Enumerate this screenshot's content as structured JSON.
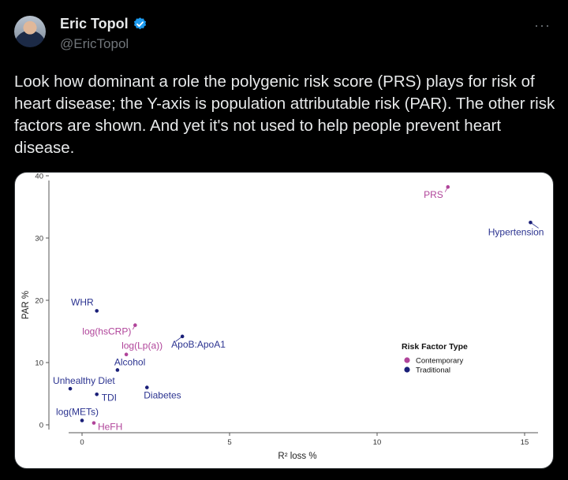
{
  "tweet": {
    "author": {
      "name": "Eric Topol",
      "handle": "@EricTopol",
      "verified": true
    },
    "more_label": "···",
    "text": "Look how dominant a role the polygenic risk score (PRS) plays for risk of heart disease; the Y-axis is population attributable risk (PAR). The other risk factors are shown. And yet it's not used to help people prevent heart disease."
  },
  "colors": {
    "contemporary": "#b0449a",
    "traditional": "#1a1f78",
    "label_traditional": "#2b3390"
  },
  "chart_data": {
    "type": "scatter",
    "xlabel": "R² loss %",
    "ylabel": "PAR %",
    "xlim": [
      -0.5,
      15.5
    ],
    "ylim": [
      -1,
      40
    ],
    "xticks": [
      0,
      5,
      10,
      15
    ],
    "yticks": [
      0,
      10,
      20,
      30,
      40
    ],
    "grid": false,
    "legend": {
      "title": "Risk Factor Type",
      "placement": "right",
      "entries": [
        {
          "label": "Contemporary",
          "color": "#b0449a"
        },
        {
          "label": "Traditional",
          "color": "#1a1f78"
        }
      ]
    },
    "points": [
      {
        "label": "PRS",
        "x": 12.4,
        "y": 38.2,
        "type": "Contemporary"
      },
      {
        "label": "Hypertension",
        "x": 15.2,
        "y": 32.5,
        "type": "Traditional"
      },
      {
        "label": "WHR",
        "x": 0.5,
        "y": 18.3,
        "type": "Traditional"
      },
      {
        "label": "log(hsCRP)",
        "x": 1.8,
        "y": 16.0,
        "type": "Contemporary"
      },
      {
        "label": "ApoB:ApoA1",
        "x": 3.4,
        "y": 14.2,
        "type": "Traditional"
      },
      {
        "label": "log(Lp(a))",
        "x": 1.5,
        "y": 11.3,
        "type": "Contemporary"
      },
      {
        "label": "Alcohol",
        "x": 1.2,
        "y": 8.8,
        "type": "Traditional"
      },
      {
        "label": "Unhealthy Diet",
        "x": -0.4,
        "y": 5.8,
        "type": "Traditional"
      },
      {
        "label": "Diabetes",
        "x": 2.2,
        "y": 6.0,
        "type": "Traditional"
      },
      {
        "label": "TDI",
        "x": 0.5,
        "y": 4.9,
        "type": "Traditional"
      },
      {
        "label": "log(METs)",
        "x": 0.0,
        "y": 0.7,
        "type": "Traditional"
      },
      {
        "label": "HeFH",
        "x": 0.4,
        "y": 0.3,
        "type": "Contemporary"
      }
    ]
  }
}
